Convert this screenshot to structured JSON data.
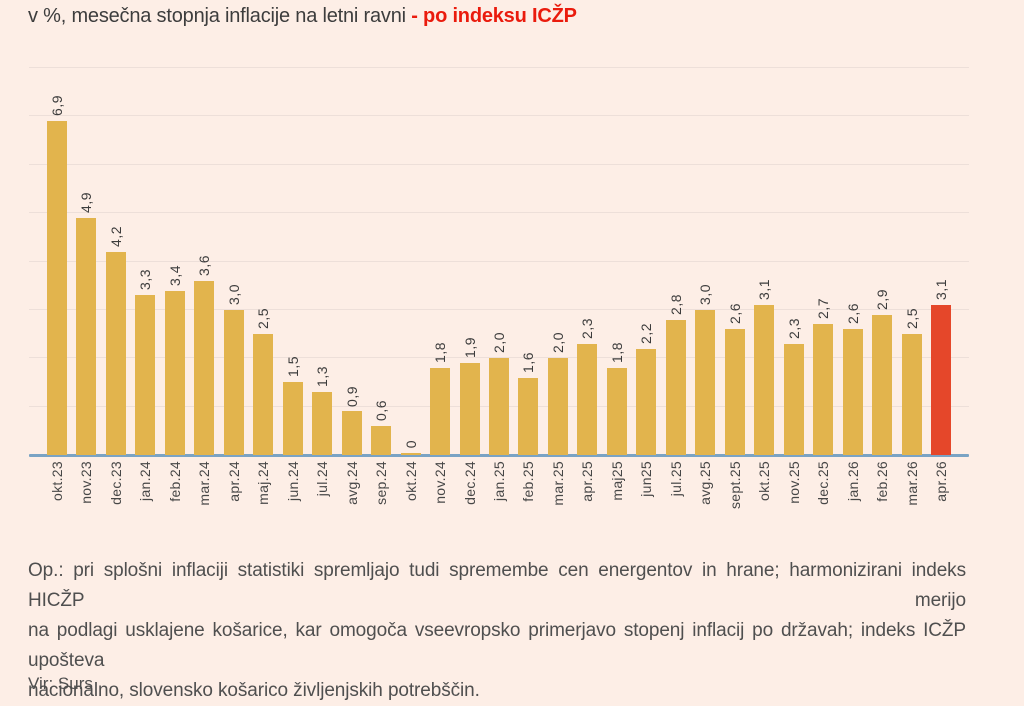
{
  "title": {
    "plain": "v %, mesečna stopnja inflacije na letni ravni ",
    "accent": "- po indeksu ICŽP"
  },
  "colors": {
    "background": "#fdeee6",
    "bar": "#e2b44d",
    "highlight_bar": "#e5472a",
    "title_accent": "#ea1b0d",
    "axis_line": "#7aa3c4",
    "gridline": "#eddfd9",
    "label_text": "#3c3c3c"
  },
  "chart_data": {
    "type": "bar",
    "title": "v %, mesečna stopnja inflacije na letni ravni - po indeksu ICŽP",
    "xlabel": "",
    "ylabel": "v %",
    "ylim": [
      0,
      8
    ],
    "gridline_step": 1,
    "grid": true,
    "legend": false,
    "highlight_index": 30,
    "categories": [
      "okt.23",
      "nov.23",
      "dec.23",
      "jan.24",
      "feb.24",
      "mar.24",
      "apr.24",
      "maj.24",
      "jun.24",
      "jul.24",
      "avg.24",
      "sep.24",
      "okt.24",
      "nov.24",
      "dec.24",
      "jan.25",
      "feb.25",
      "mar.25",
      "apr.25",
      "maj25",
      "jun25",
      "jul.25",
      "avg.25",
      "sept.25",
      "okt.25",
      "nov.25",
      "dec.25",
      "jan.26",
      "feb.26",
      "mar.26",
      "apr.26"
    ],
    "values": [
      6.9,
      4.9,
      4.2,
      3.3,
      3.4,
      3.6,
      3.0,
      2.5,
      1.5,
      1.3,
      0.9,
      0.6,
      0,
      1.8,
      1.9,
      2.0,
      1.6,
      2.0,
      2.3,
      1.8,
      2.2,
      2.8,
      3.0,
      2.6,
      3.1,
      2.3,
      2.7,
      2.6,
      2.9,
      2.5,
      3.1
    ],
    "display_values": [
      "6,9",
      "4,9",
      "4,2",
      "3,3",
      "3,4",
      "3,6",
      "3,0",
      "2,5",
      "1,5",
      "1,3",
      "0,9",
      "0,6",
      "0",
      "1,8",
      "1,9",
      "2,0",
      "1,6",
      "2,0",
      "2,3",
      "1,8",
      "2,2",
      "2,8",
      "3,0",
      "2,6",
      "3,1",
      "2,3",
      "2,7",
      "2,6",
      "2,9",
      "2,5",
      "3,1"
    ]
  },
  "footer": {
    "lines": [
      "Op.: pri splošni inflaciji statistiki spremljajo tudi spremembe cen energentov in hrane; harmonizirani indeks HICŽP merijo",
      "na podlagi usklajene košarice, kar omogoča vseevropsko primerjavo stopenj inflacij po državah; indeks ICŽP upošteva",
      "nacionalno, slovensko košarico življenjskih potrebščin."
    ]
  },
  "source": "Vir: Surs"
}
